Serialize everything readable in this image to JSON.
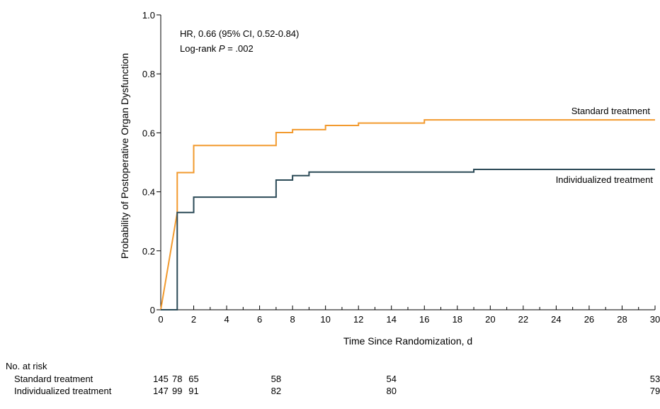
{
  "chart_data": {
    "type": "line",
    "step": true,
    "xlabel": "Time Since Randomization, d",
    "ylabel": "Probability of Postoperative Organ Dysfunction",
    "xlim": [
      0,
      30
    ],
    "ylim": [
      0,
      1.0
    ],
    "xticks": [
      0,
      2,
      4,
      6,
      8,
      10,
      12,
      14,
      16,
      18,
      20,
      22,
      24,
      26,
      28,
      30
    ],
    "yticks": [
      0,
      0.2,
      0.4,
      0.6,
      0.8,
      1.0
    ],
    "ytick_labels": [
      "0",
      "0.2",
      "0.4",
      "0.6",
      "0.8",
      "1.0"
    ],
    "grid": false,
    "annotations": {
      "hr": "HR, 0.66 (95% CI, 0.52-0.84)",
      "logrank_prefix": "Log-rank ",
      "logrank_p": "P",
      "logrank_value": " = .002"
    },
    "series": [
      {
        "name": "Standard treatment",
        "color": "#f29a2e",
        "points": [
          [
            0,
            0
          ],
          [
            1,
            0.33
          ],
          [
            1,
            0.465
          ],
          [
            2,
            0.465
          ],
          [
            2,
            0.557
          ],
          [
            7,
            0.557
          ],
          [
            7,
            0.601
          ],
          [
            8,
            0.601
          ],
          [
            8,
            0.611
          ],
          [
            10,
            0.611
          ],
          [
            10,
            0.625
          ],
          [
            12,
            0.625
          ],
          [
            12,
            0.633
          ],
          [
            16,
            0.633
          ],
          [
            16,
            0.644
          ],
          [
            30,
            0.644
          ]
        ]
      },
      {
        "name": "Individualized treatment",
        "color": "#2b4a57",
        "points": [
          [
            0,
            0
          ],
          [
            1,
            0
          ],
          [
            1,
            0.33
          ],
          [
            2,
            0.33
          ],
          [
            2,
            0.382
          ],
          [
            7,
            0.382
          ],
          [
            7,
            0.44
          ],
          [
            8,
            0.44
          ],
          [
            8,
            0.455
          ],
          [
            9,
            0.455
          ],
          [
            9,
            0.467
          ],
          [
            19,
            0.467
          ],
          [
            19,
            0.476
          ],
          [
            30,
            0.476
          ]
        ]
      }
    ],
    "risk_table": {
      "title": "No. at risk",
      "times": [
        0,
        1,
        2,
        7,
        14,
        30
      ],
      "rows": [
        {
          "label": "Standard treatment",
          "values": [
            "145",
            "78",
            "65",
            "58",
            "54",
            "53"
          ]
        },
        {
          "label": "Individualized treatment",
          "values": [
            "147",
            "99",
            "91",
            "82",
            "80",
            "79"
          ]
        }
      ]
    }
  }
}
